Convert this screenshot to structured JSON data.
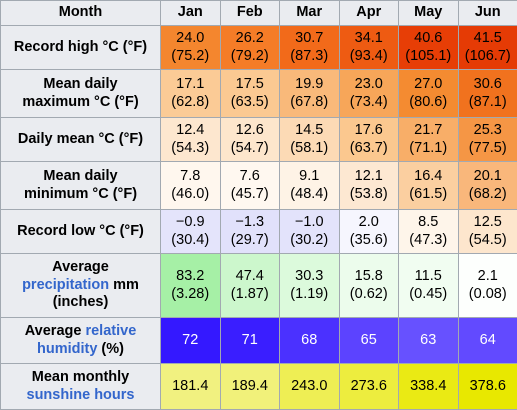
{
  "header": {
    "corner_label": "Month",
    "months": [
      "Jan",
      "Feb",
      "Mar",
      "Apr",
      "May",
      "Jun"
    ]
  },
  "rows": {
    "record_high": {
      "label": "Record high °C (°F)",
      "cells": [
        {
          "c": "24.0",
          "f": "(75.2)",
          "bg": "#f4862e"
        },
        {
          "c": "26.2",
          "f": "(79.2)",
          "bg": "#f57c27"
        },
        {
          "c": "30.7",
          "f": "(87.3)",
          "bg": "#f26a1a"
        },
        {
          "c": "34.1",
          "f": "(93.4)",
          "bg": "#ee5b12"
        },
        {
          "c": "40.6",
          "f": "(105.1)",
          "bg": "#e73e06"
        },
        {
          "c": "41.5",
          "f": "(106.7)",
          "bg": "#e53b05"
        }
      ]
    },
    "mean_max": {
      "label_line1": "Mean daily",
      "label_line2": "maximum °C (°F)",
      "cells": [
        {
          "c": "17.1",
          "f": "(62.8)",
          "bg": "#fbcb96"
        },
        {
          "c": "17.5",
          "f": "(63.5)",
          "bg": "#fbc992"
        },
        {
          "c": "19.9",
          "f": "(67.8)",
          "bg": "#f9b97a"
        },
        {
          "c": "23.0",
          "f": "(73.4)",
          "bg": "#f7a659"
        },
        {
          "c": "27.0",
          "f": "(80.6)",
          "bg": "#f48b31"
        },
        {
          "c": "30.6",
          "f": "(87.1)",
          "bg": "#f1721e"
        }
      ]
    },
    "daily_mean": {
      "label": "Daily mean °C (°F)",
      "cells": [
        {
          "c": "12.4",
          "f": "(54.3)",
          "bg": "#fde7cf"
        },
        {
          "c": "12.6",
          "f": "(54.7)",
          "bg": "#fde6cc"
        },
        {
          "c": "14.5",
          "f": "(58.1)",
          "bg": "#fcdab5"
        },
        {
          "c": "17.6",
          "f": "(63.7)",
          "bg": "#fbc88f"
        },
        {
          "c": "21.7",
          "f": "(71.1)",
          "bg": "#f8ae68"
        },
        {
          "c": "25.3",
          "f": "(77.5)",
          "bg": "#f59645"
        }
      ]
    },
    "mean_min": {
      "label_line1": "Mean daily",
      "label_line2": "minimum °C (°F)",
      "cells": [
        {
          "c": "7.8",
          "f": "(46.0)",
          "bg": "#fff7ee"
        },
        {
          "c": "7.6",
          "f": "(45.7)",
          "bg": "#fff8f0"
        },
        {
          "c": "9.1",
          "f": "(48.4)",
          "bg": "#fef3e6"
        },
        {
          "c": "12.1",
          "f": "(53.8)",
          "bg": "#fde8d2"
        },
        {
          "c": "16.4",
          "f": "(61.5)",
          "bg": "#fbcfa0"
        },
        {
          "c": "20.1",
          "f": "(68.2)",
          "bg": "#f9b77b"
        }
      ]
    },
    "record_low": {
      "label": "Record low °C (°F)",
      "cells": [
        {
          "c": "−0.9",
          "f": "(30.4)",
          "bg": "#e4e4fb"
        },
        {
          "c": "−1.3",
          "f": "(29.7)",
          "bg": "#e1e1fb"
        },
        {
          "c": "−1.0",
          "f": "(30.2)",
          "bg": "#e3e3fb"
        },
        {
          "c": "2.0",
          "f": "(35.6)",
          "bg": "#f6f6fe"
        },
        {
          "c": "8.5",
          "f": "(47.3)",
          "bg": "#fef5ea"
        },
        {
          "c": "12.5",
          "f": "(54.5)",
          "bg": "#fde6cd"
        }
      ]
    },
    "precipitation": {
      "label_line1": "Average",
      "label_link": "precipitation",
      "label_unit": " mm",
      "label_line3": "(inches)",
      "cells": [
        {
          "c": "83.2",
          "f": "(3.28)",
          "bg": "#a6f0a6"
        },
        {
          "c": "47.4",
          "f": "(1.87)",
          "bg": "#ccf7cc"
        },
        {
          "c": "30.3",
          "f": "(1.19)",
          "bg": "#dcfadc"
        },
        {
          "c": "15.8",
          "f": "(0.62)",
          "bg": "#ecfcec"
        },
        {
          "c": "11.5",
          "f": "(0.45)",
          "bg": "#f1fdf1"
        },
        {
          "c": "2.1",
          "f": "(0.08)",
          "bg": "#fdfffd"
        }
      ]
    },
    "humidity": {
      "label_line1": "Average",
      "label_link1": "relative",
      "label_link2": "humidity",
      "label_unit": " (%)",
      "cells": [
        {
          "v": "72",
          "bg": "#3418ff"
        },
        {
          "v": "71",
          "bg": "#3a1eff"
        },
        {
          "v": "68",
          "bg": "#4b31ff"
        },
        {
          "v": "65",
          "bg": "#5c43ff"
        },
        {
          "v": "63",
          "bg": "#6751ff"
        },
        {
          "v": "64",
          "bg": "#624aff"
        }
      ]
    },
    "sunshine": {
      "label_line1": "Mean monthly",
      "label_link": "sunshine hours",
      "cells": [
        {
          "v": "181.4",
          "bg": "#f1f180"
        },
        {
          "v": "189.4",
          "bg": "#f1f17a"
        },
        {
          "v": "243.0",
          "bg": "#eeee54"
        },
        {
          "v": "273.6",
          "bg": "#eded3e"
        },
        {
          "v": "338.4",
          "bg": "#eaea14"
        },
        {
          "v": "378.6",
          "bg": "#e8e800"
        }
      ]
    }
  },
  "text_colors": {
    "dark_cell_text": "#ffffff",
    "default_text": "#000000",
    "link": "#3366cc"
  }
}
